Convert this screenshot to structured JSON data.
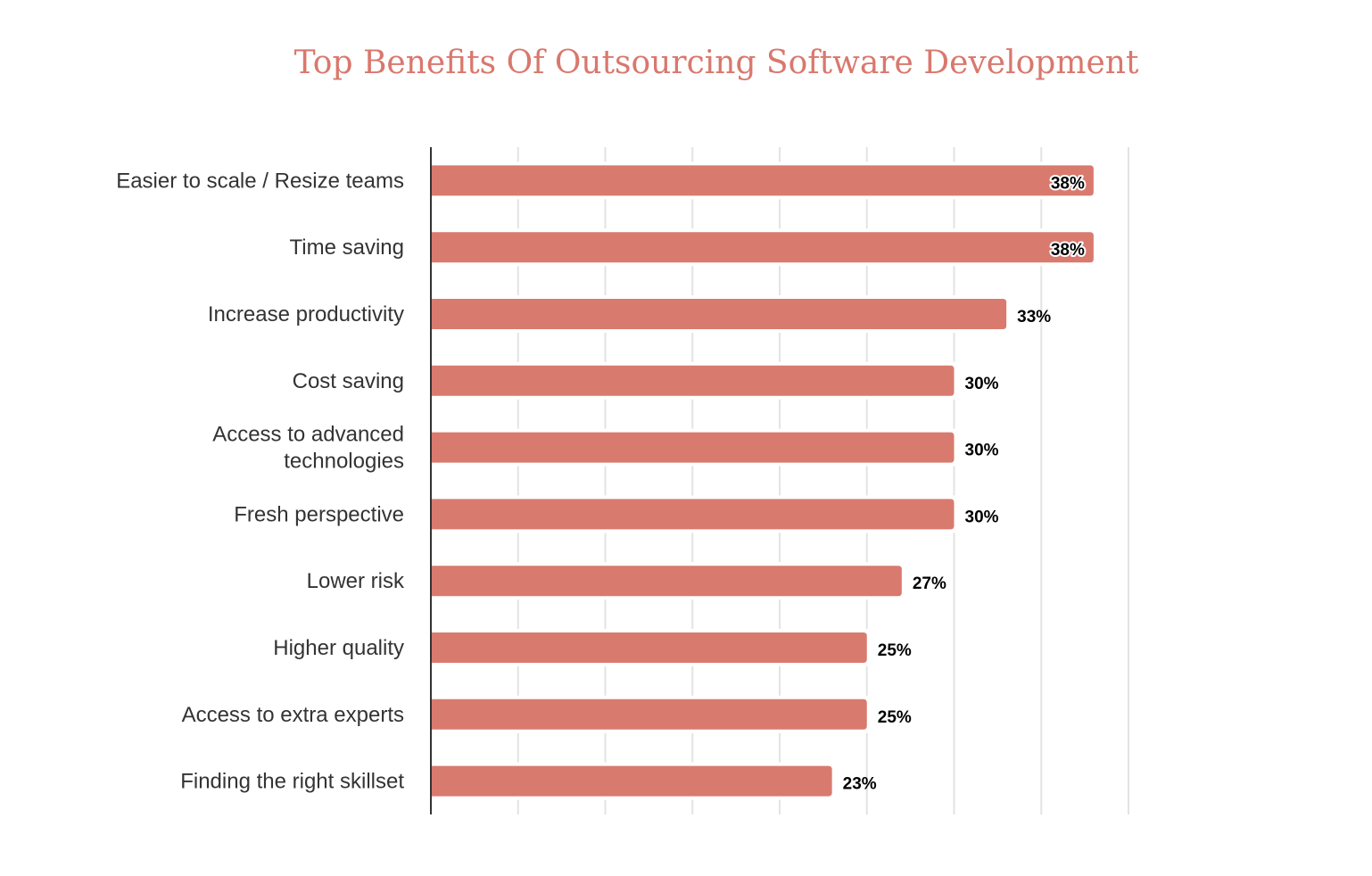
{
  "chart_data": {
    "type": "bar",
    "orientation": "horizontal",
    "title": "Top Benefits Of Outsourcing Software Development",
    "xlabel": "",
    "ylabel": "",
    "xlim": [
      0,
      40
    ],
    "grid": true,
    "bar_color": "#d97a6f",
    "categories": [
      "Easier to scale / Resize teams",
      "Time saving",
      "Increase productivity",
      "Cost saving",
      "Access to advanced technologies",
      "Fresh perspective",
      "Lower risk",
      "Higher quality",
      "Access to extra experts",
      "Finding the right skillset"
    ],
    "values": [
      38,
      38,
      33,
      30,
      30,
      30,
      27,
      25,
      25,
      23
    ],
    "data_labels": [
      "38%",
      "38%",
      "33%",
      "30%",
      "30%",
      "30%",
      "27%",
      "25%",
      "25%",
      "23%"
    ]
  }
}
